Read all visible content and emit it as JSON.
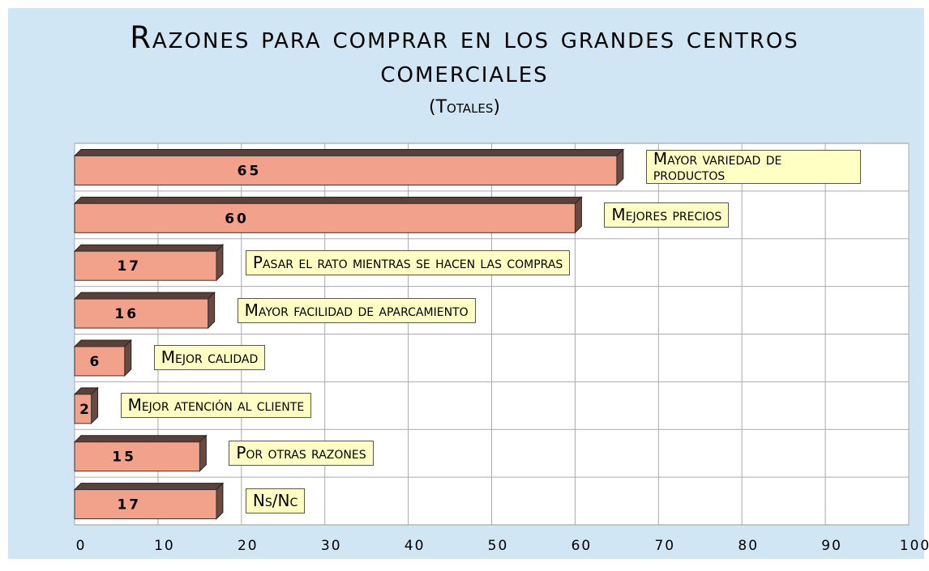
{
  "chart_data": {
    "type": "bar",
    "orientation": "horizontal",
    "title": "Razones para comprar en los grandes centros comerciales",
    "subtitle": "(Totales)",
    "categories": [
      "Mayor variedad de productos",
      "Mejores precios",
      "Pasar el rato mientras se hacen las compras",
      "Mayor facilidad de aparcamiento",
      "Mejor calidad",
      "Mejor atención al cliente",
      "Por otras razones",
      "Ns/Nc"
    ],
    "values": [
      65,
      60,
      17,
      16,
      6,
      2,
      15,
      17
    ],
    "color": "#f2a18a",
    "xlim": [
      0,
      100
    ],
    "xticks": [
      0,
      10,
      20,
      30,
      40,
      50,
      60,
      70,
      80,
      90,
      100
    ],
    "grid": true
  }
}
